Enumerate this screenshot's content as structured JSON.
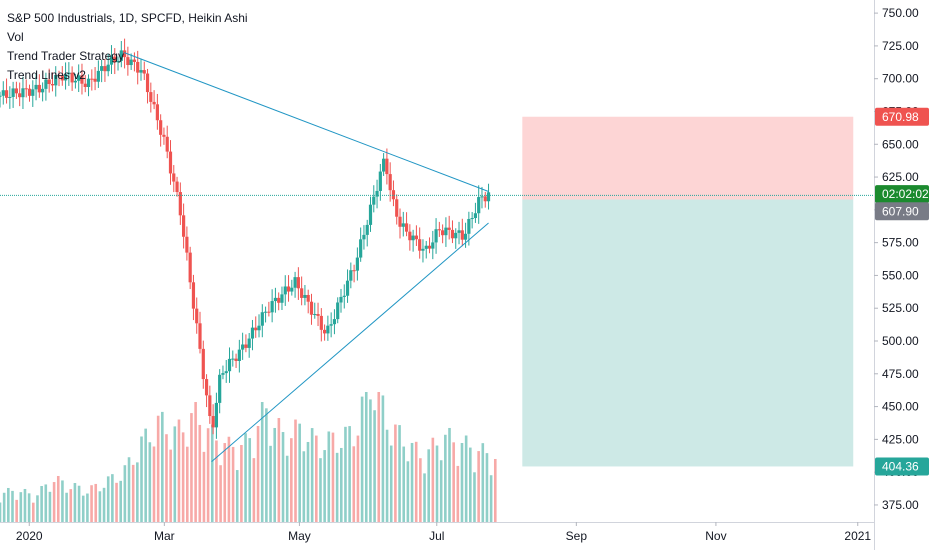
{
  "legend": {
    "title": "S&P 500 Industrials, 1D, SPCFD, Heikin Ashi",
    "lines": [
      "Vol",
      "Trend Trader Strategy",
      "Trend Lines v2"
    ]
  },
  "colors": {
    "up": "#26a69a",
    "down": "#ef5350",
    "vol_up": "#8fcfc8",
    "vol_down": "#f7a9a7",
    "trendline": "#2196c4",
    "price_line": "#26a69a",
    "stop_zone": "#fdd5d5",
    "target_zone": "#cde9e6",
    "stop_tag": "#ef5350",
    "current_tag": "#1b8a2e",
    "entry_tag": "#787b86",
    "target_tag": "#26a69a"
  },
  "price_tags": {
    "stop": "670.98",
    "countdown": "02:02:02",
    "entry": "607.90",
    "target": "404.36"
  },
  "chart_data": {
    "type": "candlestick",
    "title": "S&P 500 Industrials, 1D, SPCFD, Heikin Ashi",
    "x_axis": {
      "type": "date",
      "range": [
        "2019-12-20",
        "2021-01-05"
      ],
      "tick_labels": [
        {
          "label": "2020",
          "date": "2020-01-02"
        },
        {
          "label": "Mar",
          "date": "2020-03-02"
        },
        {
          "label": "May",
          "date": "2020-05-01"
        },
        {
          "label": "Jul",
          "date": "2020-07-01"
        },
        {
          "label": "Sep",
          "date": "2020-09-01"
        },
        {
          "label": "Nov",
          "date": "2020-11-02"
        },
        {
          "label": "2021",
          "date": "2021-01-04"
        }
      ]
    },
    "y_axis": {
      "range": [
        362,
        760
      ],
      "position": "right",
      "tick_labels": [
        "750.00",
        "725.00",
        "700.00",
        "675.00",
        "650.00",
        "625.00",
        "600.00",
        "575.00",
        "550.00",
        "525.00",
        "500.00",
        "475.00",
        "450.00",
        "425.00",
        "400.00",
        "375.00"
      ]
    },
    "price_path": {
      "description_dates": [
        "2019-12-20",
        "2020-01-06",
        "2020-01-17",
        "2020-01-28",
        "2020-02-05",
        "2020-02-12",
        "2020-02-21",
        "2020-03-02",
        "2020-03-09",
        "2020-03-16",
        "2020-03-23",
        "2020-03-27",
        "2020-04-06",
        "2020-04-17",
        "2020-04-29",
        "2020-05-13",
        "2020-05-26",
        "2020-06-08",
        "2020-06-11",
        "2020-06-15",
        "2020-06-26",
        "2020-07-02",
        "2020-07-13",
        "2020-07-20",
        "2020-07-24"
      ],
      "close_values": [
        687,
        692,
        703,
        696,
        710,
        718,
        706,
        652,
        600,
        515,
        430,
        475,
        495,
        525,
        545,
        505,
        560,
        640,
        608,
        588,
        568,
        585,
        580,
        608,
        612
      ]
    },
    "volume_bars": {
      "relative_scale_note": "volume panel has no printed scale",
      "values_relative": [
        0.2,
        0.22,
        0.18,
        0.3,
        0.25,
        0.22,
        0.28,
        0.35,
        0.55,
        0.7,
        0.62,
        0.75,
        0.6,
        0.52,
        0.55,
        0.78,
        0.6,
        0.65,
        0.55,
        0.58,
        0.62,
        1.0,
        0.68,
        0.55,
        0.45,
        0.6,
        0.55,
        0.5,
        0.45
      ]
    },
    "trendlines": [
      {
        "name": "upper",
        "from": {
          "date": "2020-02-13",
          "value": 720
        },
        "to": {
          "date": "2020-07-24",
          "value": 614
        }
      },
      {
        "name": "lower",
        "from": {
          "date": "2020-03-23",
          "value": 408
        },
        "to": {
          "date": "2020-07-24",
          "value": 590
        }
      }
    ],
    "position_tool": {
      "type": "short",
      "start": "2020-08-08",
      "end": "2021-01-02",
      "entry": 607.9,
      "stop": 670.98,
      "target": 404.36
    },
    "current_price_line": 611
  }
}
